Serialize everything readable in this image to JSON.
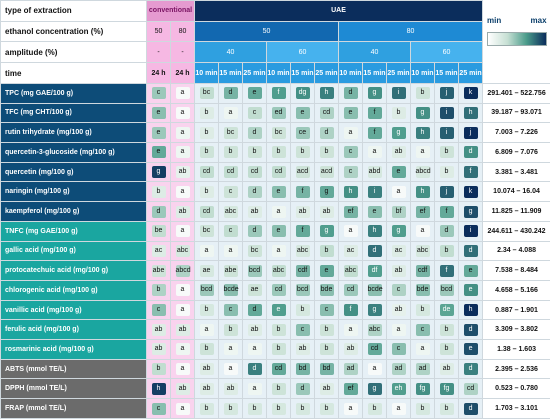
{
  "headers": {
    "type_label": "type of extraction",
    "conventional": "conventional",
    "uae": "UAE",
    "ethanol_label": "ethanol concentration (%)",
    "eth_conv": [
      "50",
      "80"
    ],
    "eth_uae": [
      "50",
      "80"
    ],
    "amplitude_label": "amplitude (%)",
    "amp_conv": [
      "-",
      "-"
    ],
    "amp_uae": [
      "40",
      "60",
      "40",
      "60"
    ],
    "time_label": "time",
    "times": [
      "24 h",
      "24 h",
      "10 min",
      "15 min",
      "25 min",
      "10 min",
      "15 min",
      "25 min",
      "10 min",
      "15 min",
      "25 min",
      "10 min",
      "15 min",
      "25 min"
    ]
  },
  "legend": {
    "min": "min",
    "max": "max"
  },
  "colors": {
    "conventional": "#f6b8e3",
    "uae": "#0b2d5c",
    "group_phenolics": "#0d4c78",
    "group_acids": "#1aa6a0",
    "group_antioxidant": "#6b6b6b"
  },
  "rows": [
    {
      "label": "TPC (mg GAE/100 g)",
      "group": 1,
      "letters": [
        "c",
        "a",
        "bc",
        "d",
        "e",
        "f",
        "dg",
        "h",
        "d",
        "g",
        "i",
        "b",
        "j",
        "k"
      ],
      "levels": [
        0.45,
        0.05,
        0.35,
        0.55,
        0.6,
        0.65,
        0.7,
        0.75,
        0.55,
        0.7,
        0.8,
        0.3,
        0.85,
        1.0
      ],
      "range": "291.401 – 522.756"
    },
    {
      "label": "TFC (mg CHT/100 g)",
      "group": 1,
      "letters": [
        "e",
        "a",
        "b",
        "a",
        "c",
        "ed",
        "e",
        "cd",
        "e",
        "f",
        "b",
        "g",
        "i",
        "h"
      ],
      "levels": [
        0.5,
        0.05,
        0.2,
        0.1,
        0.35,
        0.45,
        0.5,
        0.4,
        0.5,
        0.6,
        0.2,
        0.7,
        0.9,
        0.8
      ],
      "range": "39.187 – 93.071"
    },
    {
      "label": "rutin trihydrate (mg/100 g)",
      "group": 1,
      "letters": [
        "e",
        "a",
        "b",
        "bc",
        "d",
        "bc",
        "ce",
        "d",
        "a",
        "f",
        "g",
        "h",
        "i",
        "j"
      ],
      "levels": [
        0.45,
        0.1,
        0.2,
        0.3,
        0.4,
        0.3,
        0.45,
        0.4,
        0.1,
        0.6,
        0.65,
        0.75,
        0.85,
        1.0
      ],
      "range": "7.003 – 7.226"
    },
    {
      "label": "quercetin-3-glucoside (mg/100 g)",
      "group": 1,
      "letters": [
        "e",
        "a",
        "b",
        "b",
        "b",
        "b",
        "b",
        "b",
        "c",
        "a",
        "ab",
        "a",
        "b",
        "d"
      ],
      "levels": [
        0.6,
        0.1,
        0.3,
        0.3,
        0.3,
        0.3,
        0.3,
        0.3,
        0.45,
        0.1,
        0.2,
        0.1,
        0.3,
        0.7
      ],
      "range": "6.809 – 7.076"
    },
    {
      "label": "quercetin (mg/100 g)",
      "group": 1,
      "letters": [
        "g",
        "ab",
        "cd",
        "cd",
        "cd",
        "cd",
        "acd",
        "acd",
        "c",
        "abd",
        "e",
        "abcd",
        "b",
        "f"
      ],
      "levels": [
        0.95,
        0.15,
        0.35,
        0.35,
        0.35,
        0.35,
        0.3,
        0.3,
        0.4,
        0.25,
        0.6,
        0.25,
        0.2,
        0.8
      ],
      "range": "3.381 – 3.481"
    },
    {
      "label": "naringin (mg/100 g)",
      "group": 1,
      "letters": [
        "b",
        "a",
        "b",
        "c",
        "d",
        "e",
        "f",
        "g",
        "h",
        "i",
        "a",
        "h",
        "j",
        "k"
      ],
      "levels": [
        0.2,
        0.05,
        0.2,
        0.3,
        0.4,
        0.5,
        0.55,
        0.6,
        0.7,
        0.75,
        0.05,
        0.7,
        0.85,
        1.0
      ],
      "range": "10.074 – 16.04"
    },
    {
      "label": "kaempferol (mg/100 g)",
      "group": 1,
      "letters": [
        "d",
        "ab",
        "cd",
        "abc",
        "ab",
        "a",
        "ab",
        "ab",
        "ef",
        "e",
        "bf",
        "ef",
        "f",
        "g"
      ],
      "levels": [
        0.45,
        0.2,
        0.35,
        0.25,
        0.2,
        0.1,
        0.2,
        0.2,
        0.55,
        0.5,
        0.4,
        0.55,
        0.6,
        0.9
      ],
      "range": "11.825 – 11.909"
    },
    {
      "label": "TNFC (mg GAE/100 g)",
      "group": 2,
      "letters": [
        "be",
        "a",
        "bc",
        "c",
        "d",
        "e",
        "f",
        "g",
        "a",
        "h",
        "g",
        "a",
        "d",
        "i"
      ],
      "levels": [
        0.35,
        0.05,
        0.3,
        0.35,
        0.45,
        0.5,
        0.6,
        0.65,
        0.05,
        0.75,
        0.65,
        0.05,
        0.45,
        1.0
      ],
      "range": "244.611 – 430.242"
    },
    {
      "label": "gallic acid (mg/100 g)",
      "group": 2,
      "letters": [
        "ac",
        "abc",
        "a",
        "a",
        "bc",
        "a",
        "abc",
        "b",
        "ac",
        "d",
        "ac",
        "abc",
        "b",
        "d"
      ],
      "levels": [
        0.2,
        0.25,
        0.1,
        0.1,
        0.3,
        0.1,
        0.25,
        0.35,
        0.2,
        0.8,
        0.2,
        0.25,
        0.35,
        0.8
      ],
      "range": "2.34 – 4.088"
    },
    {
      "label": "protocatechuic acid (mg/100 g)",
      "group": 2,
      "letters": [
        "abe",
        "abcd",
        "ae",
        "abe",
        "bcd",
        "abc",
        "cdf",
        "e",
        "abc",
        "df",
        "ab",
        "cdf",
        "f",
        "e"
      ],
      "levels": [
        0.3,
        0.4,
        0.25,
        0.3,
        0.45,
        0.35,
        0.55,
        0.6,
        0.35,
        0.65,
        0.2,
        0.55,
        0.8,
        0.6
      ],
      "range": "7.538 – 8.484"
    },
    {
      "label": "chlorogenic acid (mg/100 g)",
      "group": 2,
      "letters": [
        "b",
        "a",
        "bcd",
        "bcde",
        "ae",
        "cd",
        "bcd",
        "bde",
        "cd",
        "bcde",
        "c",
        "bde",
        "bcd",
        "e"
      ],
      "levels": [
        0.4,
        0.05,
        0.45,
        0.5,
        0.3,
        0.45,
        0.45,
        0.5,
        0.45,
        0.5,
        0.4,
        0.5,
        0.45,
        0.7
      ],
      "range": "4.658 – 5.166"
    },
    {
      "label": "vanillic acid (mg/100 g)",
      "group": 2,
      "letters": [
        "c",
        "a",
        "b",
        "c",
        "d",
        "e",
        "b",
        "c",
        "f",
        "g",
        "ab",
        "b",
        "de",
        "h"
      ],
      "levels": [
        0.5,
        0.05,
        0.25,
        0.5,
        0.6,
        0.65,
        0.25,
        0.5,
        0.7,
        0.75,
        0.15,
        0.25,
        0.62,
        1.0
      ],
      "range": "0.887 – 1.901"
    },
    {
      "label": "ferulic acid (mg/100 g)",
      "group": 2,
      "letters": [
        "ab",
        "ab",
        "a",
        "b",
        "ab",
        "b",
        "c",
        "b",
        "a",
        "abc",
        "a",
        "c",
        "b",
        "d"
      ],
      "levels": [
        0.2,
        0.2,
        0.1,
        0.3,
        0.2,
        0.3,
        0.5,
        0.3,
        0.1,
        0.4,
        0.1,
        0.5,
        0.3,
        0.9
      ],
      "range": "3.309 – 3.802"
    },
    {
      "label": "rosmarinic acid (mg/100 g)",
      "group": 2,
      "letters": [
        "ab",
        "a",
        "b",
        "a",
        "a",
        "b",
        "ab",
        "b",
        "ab",
        "cd",
        "c",
        "a",
        "b",
        "e"
      ],
      "levels": [
        0.2,
        0.1,
        0.3,
        0.1,
        0.1,
        0.3,
        0.2,
        0.3,
        0.2,
        0.6,
        0.5,
        0.1,
        0.3,
        0.9
      ],
      "range": "1.38 – 1.603"
    },
    {
      "label": "ABTS (mmol TE/L)",
      "group": 3,
      "letters": [
        "b",
        "a",
        "ab",
        "a",
        "d",
        "cd",
        "bd",
        "bd",
        "ad",
        "a",
        "ad",
        "ad",
        "ab",
        "d"
      ],
      "levels": [
        0.35,
        0.05,
        0.2,
        0.05,
        0.75,
        0.6,
        0.55,
        0.55,
        0.4,
        0.05,
        0.4,
        0.4,
        0.2,
        0.75
      ],
      "range": "2.395 – 2.536"
    },
    {
      "label": "DPPH (mmol TE/L)",
      "group": 3,
      "letters": [
        "h",
        "ab",
        "ab",
        "ab",
        "a",
        "b",
        "d",
        "ab",
        "ef",
        "g",
        "eh",
        "fg",
        "fg",
        "cd"
      ],
      "levels": [
        0.95,
        0.2,
        0.2,
        0.2,
        0.1,
        0.3,
        0.45,
        0.2,
        0.6,
        0.8,
        0.65,
        0.7,
        0.7,
        0.4
      ],
      "range": "0.523 – 0.780"
    },
    {
      "label": "FRAP (mmol TE/L)",
      "group": 3,
      "letters": [
        "c",
        "a",
        "b",
        "b",
        "b",
        "b",
        "b",
        "b",
        "a",
        "b",
        "a",
        "b",
        "b",
        "d"
      ],
      "levels": [
        0.5,
        0.05,
        0.25,
        0.25,
        0.25,
        0.25,
        0.25,
        0.25,
        0.05,
        0.25,
        0.05,
        0.25,
        0.25,
        0.9
      ],
      "range": "1.703 – 3.101"
    }
  ]
}
